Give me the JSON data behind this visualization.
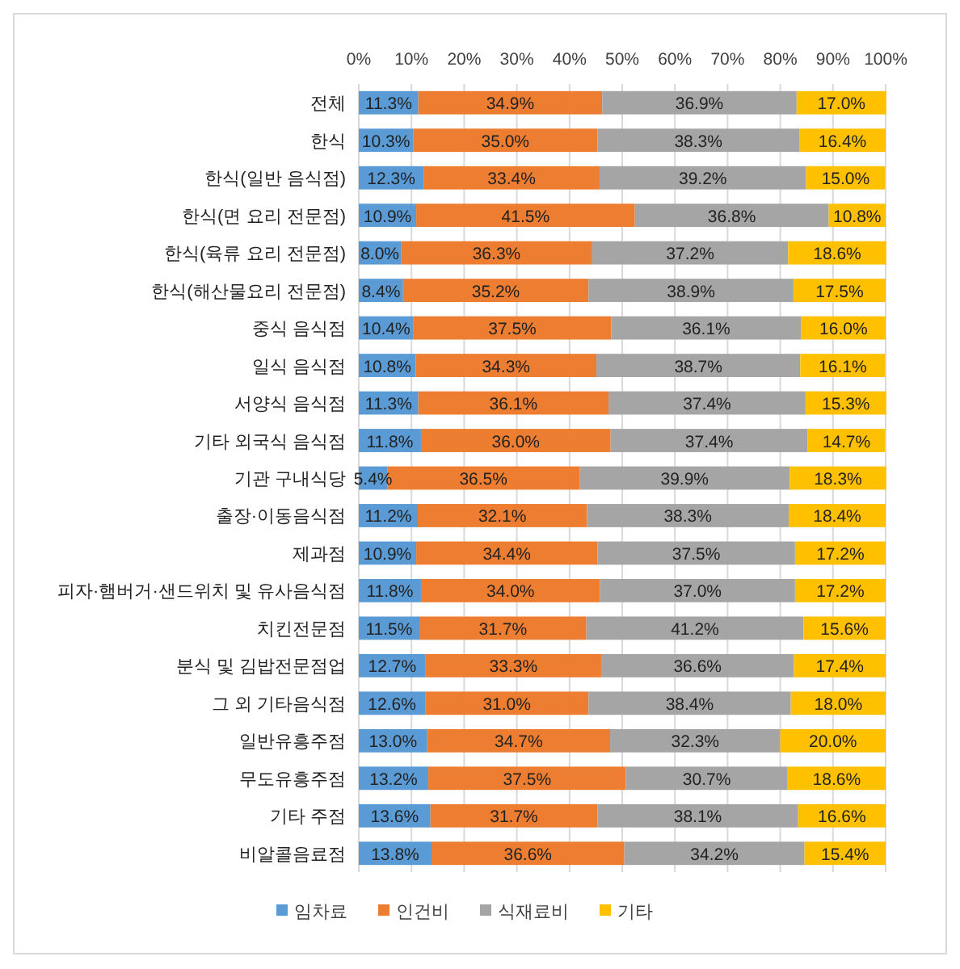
{
  "chart_data": {
    "type": "bar",
    "orientation": "horizontal",
    "stacked": true,
    "categories": [
      "전체",
      "한식",
      "한식(일반 음식점)",
      "한식(면 요리 전문점)",
      "한식(육류 요리 전문점)",
      "한식(해산물요리 전문점)",
      "중식 음식점",
      "일식 음식점",
      "서양식 음식점",
      "기타 외국식 음식점",
      "기관 구내식당",
      "출장·이동음식점",
      "제과점",
      "피자·햄버거·샌드위치 및 유사음식점",
      "치킨전문점",
      "분식 및 김밥전문점업",
      "그 외 기타음식점",
      "일반유흥주점",
      "무도유흥주점",
      "기타 주점",
      "비알콜음료점"
    ],
    "series": [
      {
        "name": "임차료",
        "color": "#5b9bd5",
        "values": [
          11.3,
          10.3,
          12.3,
          10.9,
          8.0,
          8.4,
          10.4,
          10.8,
          11.3,
          11.8,
          5.4,
          11.2,
          10.9,
          11.8,
          11.5,
          12.7,
          12.6,
          13.0,
          13.2,
          13.6,
          13.8
        ],
        "value_labels": [
          "11.3%",
          "10.3%",
          "12.3%",
          "10.9%",
          "8.0%",
          "8.4%",
          "10.4%",
          "10.8%",
          "11.3%",
          "11.8%",
          "5.4%",
          "11.2%",
          "10.9%",
          "11.8%",
          "11.5%",
          "12.7%",
          "12.6%",
          "13.0%",
          "13.2%",
          "13.6%",
          "13.8%"
        ]
      },
      {
        "name": "인건비",
        "color": "#ed7d31",
        "values": [
          34.9,
          35.0,
          33.4,
          41.5,
          36.3,
          35.2,
          37.5,
          34.3,
          36.1,
          36.0,
          36.5,
          32.1,
          34.4,
          34.0,
          31.7,
          33.3,
          31.0,
          34.7,
          37.5,
          31.7,
          36.6
        ],
        "value_labels": [
          "34.9%",
          "35.0%",
          "33.4%",
          "41.5%",
          "36.3%",
          "35.2%",
          "37.5%",
          "34.3%",
          "36.1%",
          "36.0%",
          "36.5%",
          "32.1%",
          "34.4%",
          "34.0%",
          "31.7%",
          "33.3%",
          "31.0%",
          "34.7%",
          "37.5%",
          "31.7%",
          "36.6%"
        ]
      },
      {
        "name": "식재료비",
        "color": "#a5a5a5",
        "values": [
          36.9,
          38.3,
          39.2,
          36.8,
          37.2,
          38.9,
          36.1,
          38.7,
          37.4,
          37.4,
          39.9,
          38.3,
          37.5,
          37.0,
          41.2,
          36.6,
          38.4,
          32.3,
          30.7,
          38.1,
          34.2
        ],
        "value_labels": [
          "36.9%",
          "38.3%",
          "39.2%",
          "36.8%",
          "37.2%",
          "38.9%",
          "36.1%",
          "38.7%",
          "37.4%",
          "37.4%",
          "39.9%",
          "38.3%",
          "37.5%",
          "37.0%",
          "41.2%",
          "36.6%",
          "38.4%",
          "32.3%",
          "30.7%",
          "38.1%",
          "34.2%"
        ]
      },
      {
        "name": "기타",
        "color": "#ffc000",
        "values": [
          17.0,
          16.4,
          15.0,
          10.8,
          18.6,
          17.5,
          16.0,
          16.1,
          15.3,
          14.7,
          18.3,
          18.4,
          17.2,
          17.2,
          15.6,
          17.4,
          18.0,
          20.0,
          18.6,
          16.6,
          15.4
        ],
        "value_labels": [
          "17.0%",
          "16.4%",
          "15.0%",
          "10.8%",
          "18.6%",
          "17.5%",
          "16.0%",
          "16.1%",
          "15.3%",
          "14.7%",
          "18.3%",
          "18.4%",
          "17.2%",
          "17.2%",
          "15.6%",
          "17.4%",
          "18.0%",
          "20.0%",
          "18.6%",
          "16.6%",
          "15.4%"
        ]
      }
    ],
    "xlim": [
      0,
      100
    ],
    "xticks": [
      {
        "value": 0,
        "label": "0%"
      },
      {
        "value": 10,
        "label": "10%"
      },
      {
        "value": 20,
        "label": "20%"
      },
      {
        "value": 30,
        "label": "30%"
      },
      {
        "value": 40,
        "label": "40%"
      },
      {
        "value": 50,
        "label": "50%"
      },
      {
        "value": 60,
        "label": "60%"
      },
      {
        "value": 70,
        "label": "70%"
      },
      {
        "value": 80,
        "label": "80%"
      },
      {
        "value": 90,
        "label": "90%"
      },
      {
        "value": 100,
        "label": "100%"
      }
    ],
    "grid": "x",
    "legend": "bottom"
  }
}
